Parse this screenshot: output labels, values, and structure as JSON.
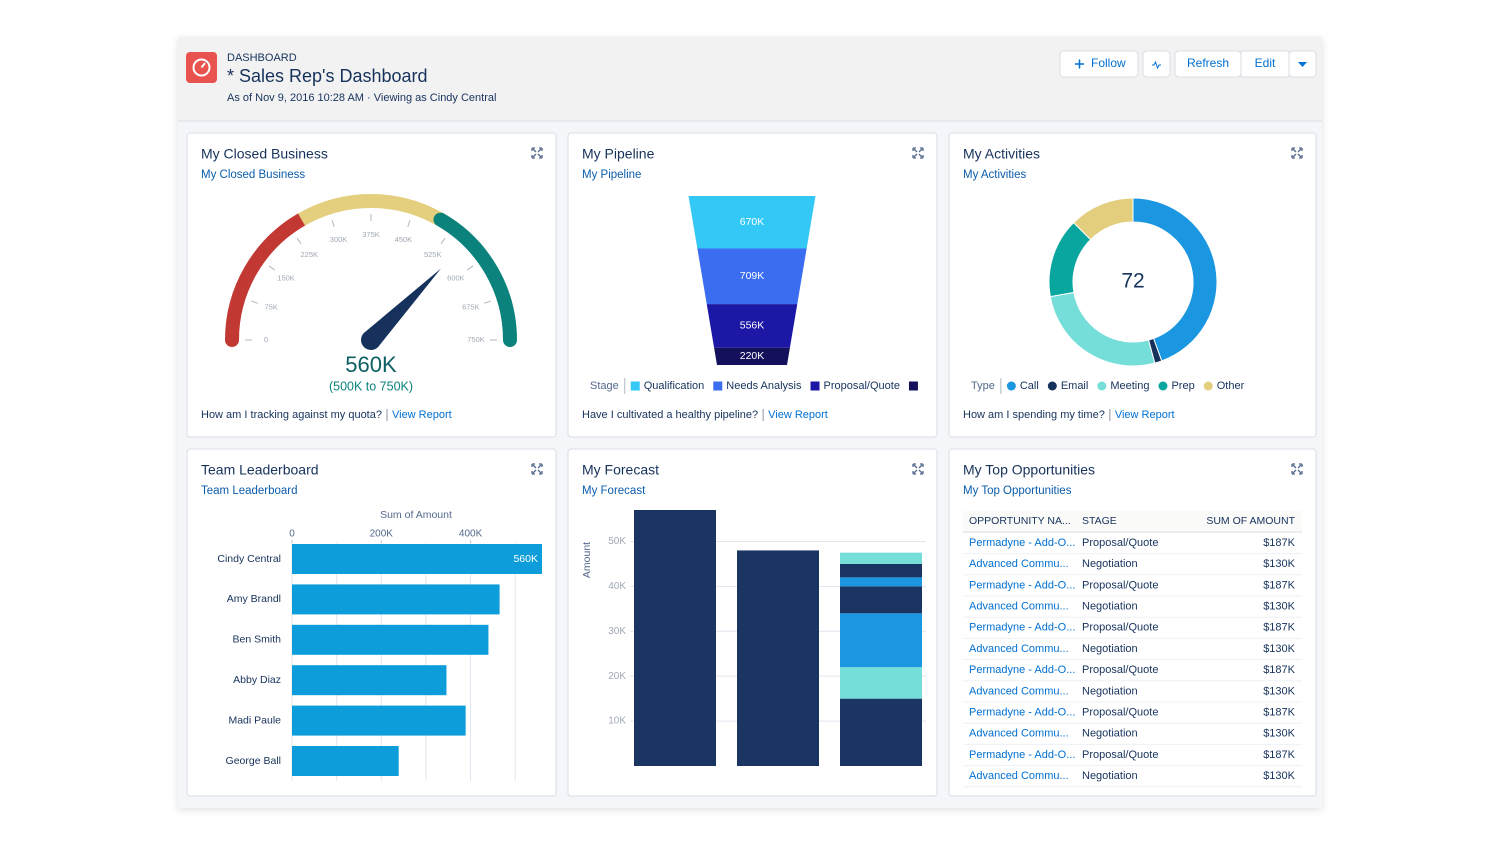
{
  "header": {
    "label": "DASHBOARD",
    "title": "* Sales Rep's Dashboard",
    "subtitle": "As of Nov 9, 2016 10:28 AM · Viewing as Cindy Central",
    "buttons": [
      "Follow",
      "Refresh",
      "Edit"
    ]
  },
  "widgets": [
    {
      "title": "My Closed Business",
      "subtitle": "My Closed Business",
      "question": "How am I tracking against my quota?",
      "link": "View Report",
      "chart_data": {
        "type": "gauge",
        "value": 560000,
        "value_label": "560K",
        "range_label": "(500K to 750K)",
        "lim": [
          0,
          750000
        ],
        "ticks": [
          0,
          {
            "value": 75000,
            "label": "75K"
          },
          {
            "value": 150000,
            "label": "150K"
          },
          {
            "value": 225000,
            "label": "225K"
          },
          {
            "value": 300000,
            "label": "300K"
          },
          {
            "value": 375000,
            "label": "375K"
          },
          {
            "value": 450000,
            "label": "450K"
          },
          {
            "value": 525000,
            "label": "525K"
          },
          {
            "value": 600000,
            "label": "600K"
          },
          {
            "value": 675000,
            "label": "675K"
          },
          {
            "value": 750000,
            "label": "750K"
          }
        ],
        "bands": [
          {
            "from": 0,
            "to": 250000,
            "color": "#c23934"
          },
          {
            "from": 250000,
            "to": 500000,
            "color": "#e4cf7e"
          },
          {
            "from": 500000,
            "to": 750000,
            "color": "#0b827c"
          }
        ],
        "needle_color": "#16325c"
      }
    },
    {
      "title": "My Pipeline",
      "subtitle": "My Pipeline",
      "question": "Have I cultivated a healthy pipeline?",
      "link": "View Report",
      "chart_data": {
        "type": "funnel",
        "legend_title": "Stage",
        "categories": [
          "Qualification",
          "Needs Analysis",
          "Proposal/Quote",
          null
        ],
        "values": [
          670000,
          709000,
          556000,
          220000
        ],
        "value_labels": [
          "670K",
          "709K",
          "556K",
          "220K"
        ],
        "colors": [
          "#34c8f7",
          "#3a6df0",
          "#1d17a6",
          "#15105c"
        ]
      }
    },
    {
      "title": "My Activities",
      "subtitle": "My Activities",
      "question": "How am I spending my time?",
      "link": "View Report",
      "chart_data": {
        "type": "donut",
        "legend_title": "Type",
        "total": 72,
        "categories": [
          "Call",
          "Email",
          "Meeting",
          "Prep",
          "Other"
        ],
        "values": [
          32,
          1,
          19,
          11,
          9
        ],
        "colors": [
          "#1b96e0",
          "#16325c",
          "#76ded9",
          "#08a69e",
          "#e2ce7d"
        ]
      }
    },
    {
      "title": "Team Leaderboard",
      "subtitle": "Team Leaderboard",
      "chart_data": {
        "type": "hbar",
        "xlabel": "Sum of Amount",
        "categories": [
          "Cindy Central",
          "Amy Brandl",
          "Ben Smith",
          "Abby Diaz",
          "Madi Paule",
          "George Ball"
        ],
        "values": [
          560000,
          465000,
          440000,
          346000,
          389000,
          239000
        ],
        "value_labels": [
          "560K",
          null,
          null,
          null,
          null,
          null
        ],
        "xlim": [
          0,
          560000
        ],
        "xticks": [
          0,
          {
            "value": 200000,
            "label": "200K"
          },
          {
            "value": 400000,
            "label": "400K"
          }
        ],
        "xgrid": [
          0,
          100000,
          200000,
          300000,
          400000,
          500000
        ],
        "color": "#0d9dda"
      }
    },
    {
      "title": "My Forecast",
      "subtitle": "My Forecast",
      "chart_data": {
        "type": "stacked_bar",
        "ylabel": "Amount",
        "categories": [
          null,
          null,
          null
        ],
        "ylim": [
          0,
          57000
        ],
        "yticks": [
          {
            "value": 10000,
            "label": "10K"
          },
          {
            "value": 20000,
            "label": "20K"
          },
          {
            "value": 30000,
            "label": "30K"
          },
          {
            "value": 40000,
            "label": "40K"
          },
          {
            "value": 50000,
            "label": "50K"
          }
        ],
        "series": [
          {
            "color": "#1b3562",
            "values": [
              57000,
              48000,
              15000
            ]
          },
          {
            "color": "#76ded9",
            "values": [
              null,
              null,
              7000
            ]
          },
          {
            "color": "#1b96e0",
            "values": [
              null,
              null,
              12000
            ]
          },
          {
            "color": "#1b3562",
            "values": [
              null,
              null,
              6000
            ]
          },
          {
            "color": "#1b96e0",
            "values": [
              null,
              null,
              2000
            ]
          },
          {
            "color": "#1b3562",
            "values": [
              null,
              null,
              3000
            ]
          },
          {
            "color": "#76ded9",
            "values": [
              null,
              null,
              2500
            ]
          }
        ]
      }
    },
    {
      "title": "My Top Opportunities",
      "subtitle": "My Top Opportunities",
      "table": {
        "columns": [
          "OPPORTUNITY NA...",
          "STAGE",
          "SUM OF AMOUNT"
        ],
        "rows": [
          [
            "Permadyne - Add-O...",
            "Proposal/Quote",
            "$187K"
          ],
          [
            "Advanced Commu...",
            "Negotiation",
            "$130K"
          ],
          [
            "Permadyne - Add-O...",
            "Proposal/Quote",
            "$187K"
          ],
          [
            "Advanced Commu...",
            "Negotiation",
            "$130K"
          ],
          [
            "Permadyne - Add-O...",
            "Proposal/Quote",
            "$187K"
          ],
          [
            "Advanced Commu...",
            "Negotiation",
            "$130K"
          ],
          [
            "Permadyne - Add-O...",
            "Proposal/Quote",
            "$187K"
          ],
          [
            "Advanced Commu...",
            "Negotiation",
            "$130K"
          ],
          [
            "Permadyne - Add-O...",
            "Proposal/Quote",
            "$187K"
          ],
          [
            "Advanced Commu...",
            "Negotiation",
            "$130K"
          ],
          [
            "Permadyne - Add-O...",
            "Proposal/Quote",
            "$187K"
          ],
          [
            "Advanced Commu...",
            "Negotiation",
            "$130K"
          ]
        ]
      }
    }
  ]
}
